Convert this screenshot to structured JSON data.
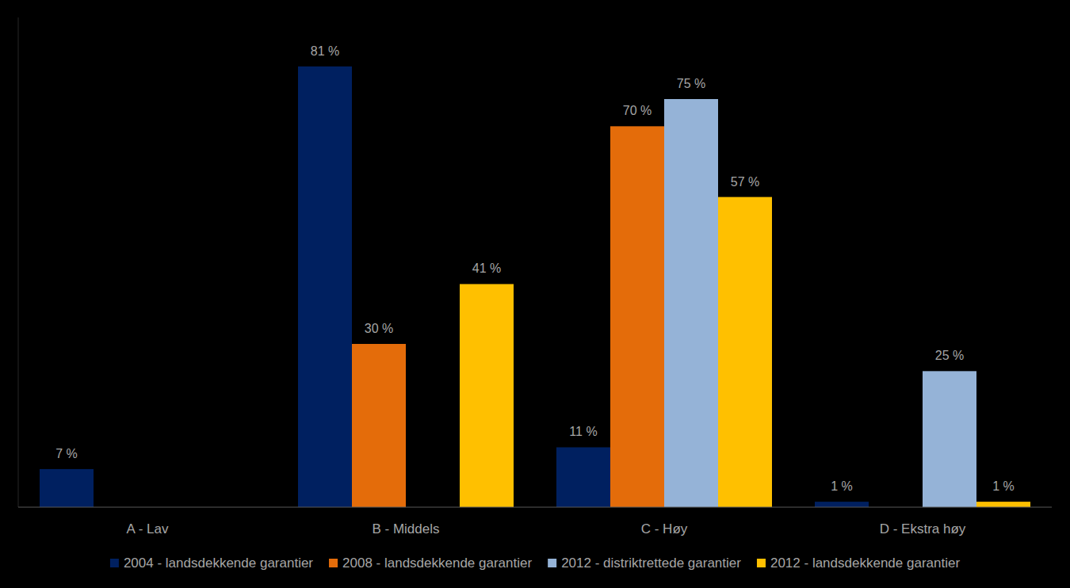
{
  "chart_data": {
    "type": "bar",
    "categories": [
      "A - Lav",
      "B - Middels",
      "C - Høy",
      "D - Ekstra høy"
    ],
    "series": [
      {
        "name": "2004 - landsdekkende garantier",
        "color": "#002060",
        "values": [
          7,
          81,
          11,
          1
        ],
        "value_labels": [
          "7 %",
          "81 %",
          "11 %",
          "1 %"
        ]
      },
      {
        "name": "2008 - landsdekkende garantier",
        "color": "#e46c0a",
        "values": [
          null,
          30,
          70,
          null
        ],
        "value_labels": [
          null,
          "30 %",
          "70 %",
          null
        ]
      },
      {
        "name": "2012 - distriktrettede garantier",
        "color": "#95b3d7",
        "values": [
          null,
          null,
          75,
          25
        ],
        "value_labels": [
          null,
          null,
          "75 %",
          "25 %"
        ]
      },
      {
        "name": "2012 - landsdekkende garantier",
        "color": "#ffc000",
        "values": [
          null,
          41,
          57,
          1
        ],
        "value_labels": [
          null,
          "41 %",
          "57 %",
          "1 %"
        ]
      }
    ],
    "ylim": [
      0,
      90
    ],
    "grid": false,
    "legend": "bottom",
    "data_labels": true,
    "tick_labels": "x"
  }
}
